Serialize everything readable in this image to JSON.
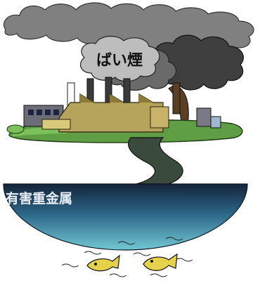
{
  "labels": {
    "smoke": "ばい煙",
    "heavy_metal": "有害重金属"
  },
  "colors": {
    "sky_cloud": "#7d7d7d",
    "smoke_light": "#9a9a9a",
    "smoke_dark": "#4a4a4a",
    "ground": "#6aa84f",
    "factory_wall": "#b8a860",
    "factory_roof": "#8e7f3e",
    "river": "#3d4d3f",
    "water_top": "#1a2a3a",
    "water_bottom": "#6ec3cf"
  },
  "icons": {
    "factory": "factory-icon",
    "cloud": "cloud-icon",
    "fish": "dead-fish-icon"
  }
}
